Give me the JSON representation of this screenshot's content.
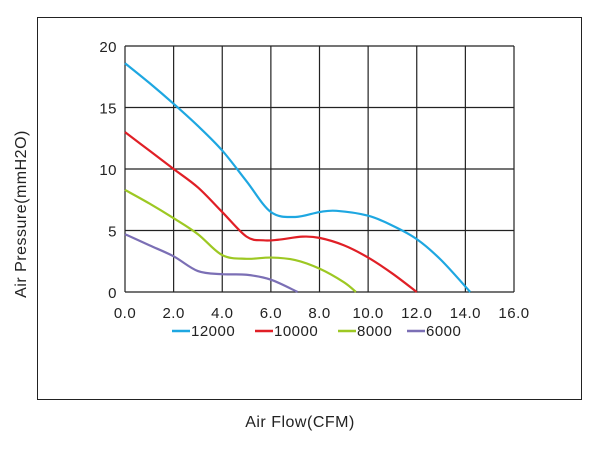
{
  "chart_data": {
    "type": "line",
    "title": "",
    "xlabel": "Air Flow(CFM)",
    "ylabel": "Air Pressure(mmH2O)",
    "xlim": [
      0,
      16
    ],
    "ylim": [
      0,
      20
    ],
    "xticks": [
      "0.0",
      "2.0",
      "4.0",
      "6.0",
      "8.0",
      "10.0",
      "12.0",
      "14.0",
      "16.0"
    ],
    "yticks": [
      "0",
      "5",
      "10",
      "15",
      "20"
    ],
    "grid": true,
    "legend_position": "bottom",
    "series": [
      {
        "name": "12000",
        "color": "#1ea7e1",
        "points": [
          [
            0,
            18.6
          ],
          [
            1,
            17
          ],
          [
            2,
            15.3
          ],
          [
            3,
            13.5
          ],
          [
            4,
            11.5
          ],
          [
            5,
            9
          ],
          [
            6,
            6.5
          ],
          [
            7,
            6.1
          ],
          [
            8,
            6.5
          ],
          [
            8.7,
            6.6
          ],
          [
            10,
            6.2
          ],
          [
            11,
            5.4
          ],
          [
            12,
            4.3
          ],
          [
            13,
            2.6
          ],
          [
            14.2,
            0
          ]
        ]
      },
      {
        "name": "10000",
        "color": "#e01f26",
        "points": [
          [
            0,
            13
          ],
          [
            1,
            11.5
          ],
          [
            2,
            10
          ],
          [
            3,
            8.5
          ],
          [
            4,
            6.5
          ],
          [
            5,
            4.5
          ],
          [
            5.7,
            4.2
          ],
          [
            6.3,
            4.25
          ],
          [
            7.3,
            4.5
          ],
          [
            8,
            4.4
          ],
          [
            9,
            3.8
          ],
          [
            10,
            2.8
          ],
          [
            11,
            1.5
          ],
          [
            12,
            0
          ]
        ]
      },
      {
        "name": "8000",
        "color": "#9dc823",
        "points": [
          [
            0,
            8.3
          ],
          [
            1,
            7.2
          ],
          [
            2,
            6
          ],
          [
            3,
            4.7
          ],
          [
            4,
            3
          ],
          [
            5,
            2.7
          ],
          [
            6,
            2.8
          ],
          [
            7,
            2.6
          ],
          [
            8,
            1.9
          ],
          [
            9,
            0.8
          ],
          [
            9.5,
            0
          ]
        ]
      },
      {
        "name": "6000",
        "color": "#7b6fb5",
        "points": [
          [
            0,
            4.7
          ],
          [
            1,
            3.8
          ],
          [
            2,
            2.9
          ],
          [
            3,
            1.7
          ],
          [
            4,
            1.45
          ],
          [
            5,
            1.4
          ],
          [
            6,
            1
          ],
          [
            7.1,
            0
          ]
        ]
      }
    ]
  }
}
